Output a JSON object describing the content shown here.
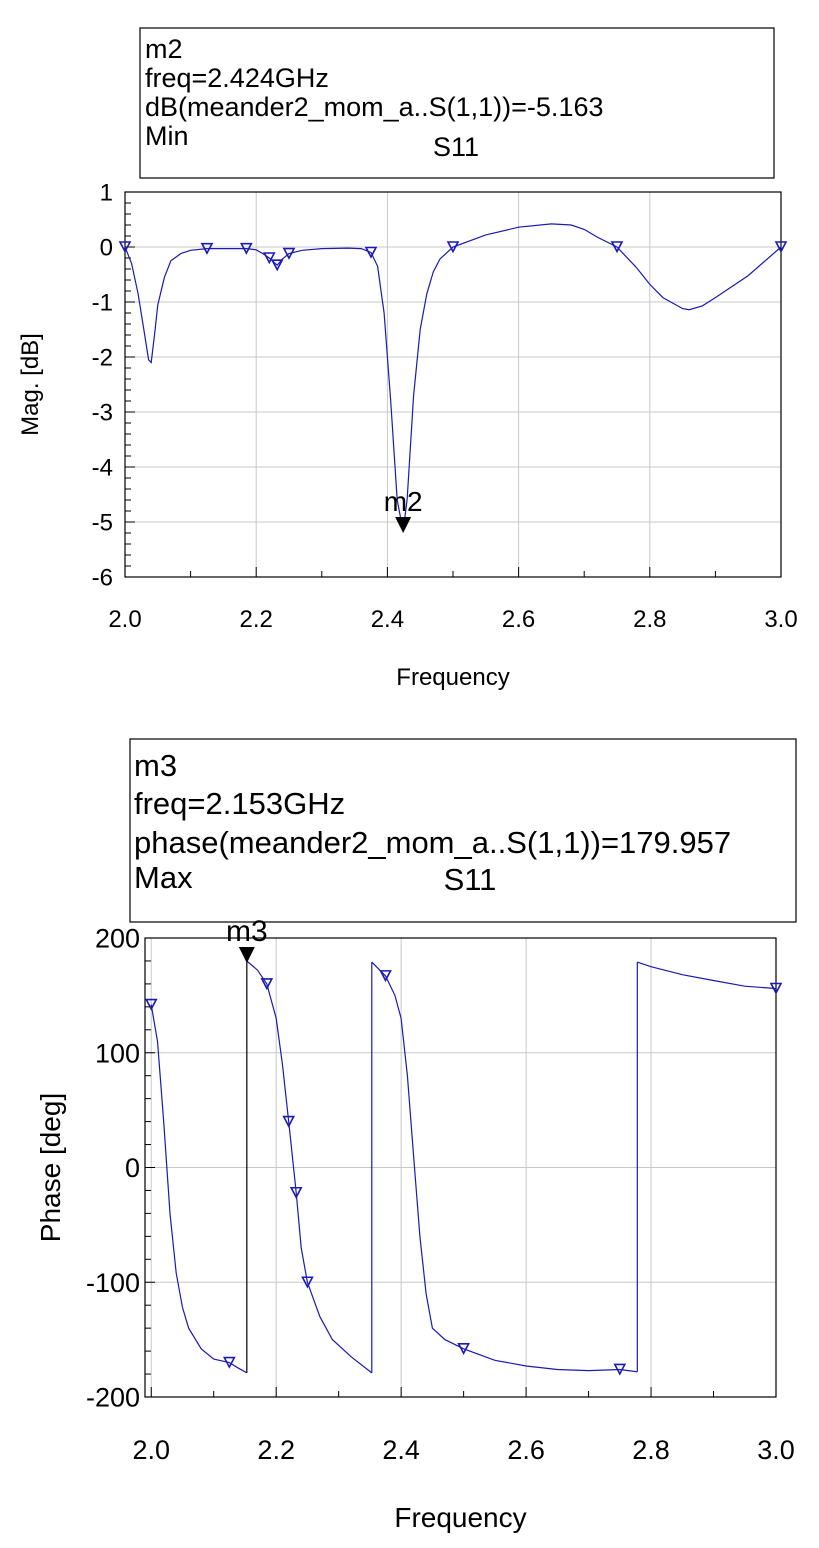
{
  "chart_data": [
    {
      "type": "line",
      "title": "S11",
      "xlabel": "Frequency",
      "ylabel": "Mag. [dB]",
      "xlim": [
        2.0,
        3.0
      ],
      "ylim": [
        -6,
        1
      ],
      "grid": true,
      "x_ticks": [
        "2.0",
        "2.2",
        "2.4",
        "2.6",
        "2.8",
        "3.0"
      ],
      "y_ticks": [
        "-6",
        "-5",
        "-4",
        "-3",
        "-2",
        "-1",
        "0",
        "1"
      ],
      "series": [
        {
          "color": "#1a1ab4",
          "x": [
            2.0,
            2.01,
            2.02,
            2.03,
            2.036,
            2.04,
            2.045,
            2.05,
            2.06,
            2.07,
            2.085,
            2.1,
            2.125,
            2.15,
            2.185,
            2.2,
            2.21,
            2.22,
            2.232,
            2.24,
            2.25,
            2.27,
            2.3,
            2.34,
            2.36,
            2.375,
            2.385,
            2.395,
            2.405,
            2.415,
            2.424,
            2.43,
            2.44,
            2.45,
            2.46,
            2.47,
            2.48,
            2.5,
            2.55,
            2.6,
            2.65,
            2.68,
            2.7,
            2.72,
            2.75,
            2.78,
            2.8,
            2.82,
            2.85,
            2.86,
            2.88,
            2.9,
            2.95,
            3.0
          ],
          "y": [
            0.0,
            -0.3,
            -0.85,
            -1.6,
            -2.05,
            -2.1,
            -1.6,
            -1.05,
            -0.55,
            -0.25,
            -0.12,
            -0.06,
            -0.03,
            -0.03,
            -0.03,
            -0.05,
            -0.12,
            -0.2,
            -0.33,
            -0.22,
            -0.12,
            -0.06,
            -0.03,
            -0.02,
            -0.03,
            -0.1,
            -0.35,
            -1.2,
            -2.8,
            -4.6,
            -5.163,
            -4.6,
            -2.7,
            -1.5,
            -0.85,
            -0.45,
            -0.22,
            0.0,
            0.22,
            0.36,
            0.42,
            0.4,
            0.32,
            0.18,
            0.0,
            -0.38,
            -0.68,
            -0.92,
            -1.12,
            -1.14,
            -1.07,
            -0.92,
            -0.52,
            0.0
          ]
        }
      ],
      "triangle_markers_x": [
        2.0,
        2.125,
        2.185,
        2.22,
        2.232,
        2.25,
        2.375,
        2.5,
        2.75,
        3.0
      ],
      "marker": {
        "name": "m2",
        "x": 2.424,
        "y": -5.163,
        "lines": [
          "m2",
          "freq=2.424GHz",
          "dB(meander2_mom_a..S(1,1))=-5.163",
          "Min"
        ]
      }
    },
    {
      "type": "line",
      "title": "S11",
      "xlabel": "Frequency",
      "ylabel": "Phase [deg]",
      "xlim": [
        1.99,
        3.0
      ],
      "ylim": [
        -200,
        200
      ],
      "grid": true,
      "x_ticks": [
        "2.0",
        "2.2",
        "2.4",
        "2.6",
        "2.8",
        "3.0"
      ],
      "x_tick_values": [
        2.0,
        2.2,
        2.4,
        2.6,
        2.8,
        3.0
      ],
      "y_ticks": [
        "-200",
        "-100",
        "0",
        "100",
        "200"
      ],
      "series": [
        {
          "color": "#1a1ab4",
          "segments": [
            {
              "x": [
                2.0,
                2.01,
                2.02,
                2.03,
                2.04,
                2.05,
                2.06,
                2.08,
                2.1,
                2.125,
                2.14,
                2.153
              ],
              "y": [
                142,
                110,
                40,
                -40,
                -92,
                -122,
                -140,
                -158,
                -167,
                -170,
                -175,
                -179
              ]
            },
            {
              "x": [
                2.153,
                2.17,
                2.185,
                2.2,
                2.21,
                2.22,
                2.232,
                2.24,
                2.25,
                2.27,
                2.29,
                2.32,
                2.353
              ],
              "y": [
                179.957,
                172,
                160,
                130,
                90,
                40,
                -22,
                -70,
                -100,
                -130,
                -150,
                -165,
                -179
              ]
            },
            {
              "x": [
                2.353,
                2.375,
                2.39,
                2.4,
                2.41,
                2.42,
                2.43,
                2.44,
                2.45,
                2.47,
                2.5,
                2.55,
                2.6,
                2.65,
                2.7,
                2.75,
                2.778
              ],
              "y": [
                179,
                167,
                150,
                130,
                80,
                10,
                -60,
                -110,
                -140,
                -150,
                -158,
                -168,
                -173,
                -176,
                -177,
                -176,
                -178
              ]
            },
            {
              "x": [
                2.778,
                2.8,
                2.85,
                2.9,
                2.95,
                3.0
              ],
              "y": [
                179,
                175,
                168,
                163,
                158,
                156
              ]
            }
          ]
        }
      ],
      "triangle_markers_x": [
        2.0,
        2.125,
        2.185,
        2.22,
        2.232,
        2.25,
        2.375,
        2.5,
        2.75,
        3.0
      ],
      "marker": {
        "name": "m3",
        "x": 2.153,
        "y": 179.957,
        "lines": [
          "m3",
          "freq=2.153GHz",
          "phase(meander2_mom_a..S(1,1))=179.957",
          "Max"
        ]
      }
    }
  ]
}
